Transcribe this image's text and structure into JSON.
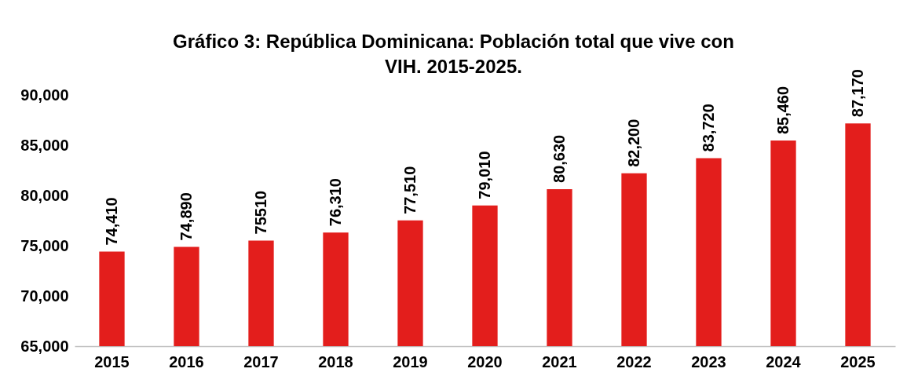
{
  "chart_data": {
    "type": "bar",
    "title": "Gráfico 3: República Dominicana: Población total que vive con VIH. 2015-2025.",
    "categories": [
      "2015",
      "2016",
      "2017",
      "2018",
      "2019",
      "2020",
      "2021",
      "2022",
      "2023",
      "2024",
      "2025"
    ],
    "values": [
      74410,
      74890,
      75510,
      76310,
      77510,
      79010,
      80630,
      82200,
      83720,
      85460,
      87170
    ],
    "value_labels": [
      "74,410",
      "74,890",
      "75510",
      "76,310",
      "77,510",
      "79,010",
      "80,630",
      "82,200",
      "83,720",
      "85,460",
      "87,170"
    ],
    "color": "#e31e1c",
    "ylim": [
      65000,
      90000
    ],
    "yticks": [
      {
        "value": 65000,
        "label": "65,000"
      },
      {
        "value": 70000,
        "label": "70,000"
      },
      {
        "value": 75000,
        "label": "75,000"
      },
      {
        "value": 80000,
        "label": "80,000"
      },
      {
        "value": 85000,
        "label": "85,000"
      },
      {
        "value": 90000,
        "label": "90,000"
      }
    ],
    "grid": false
  }
}
